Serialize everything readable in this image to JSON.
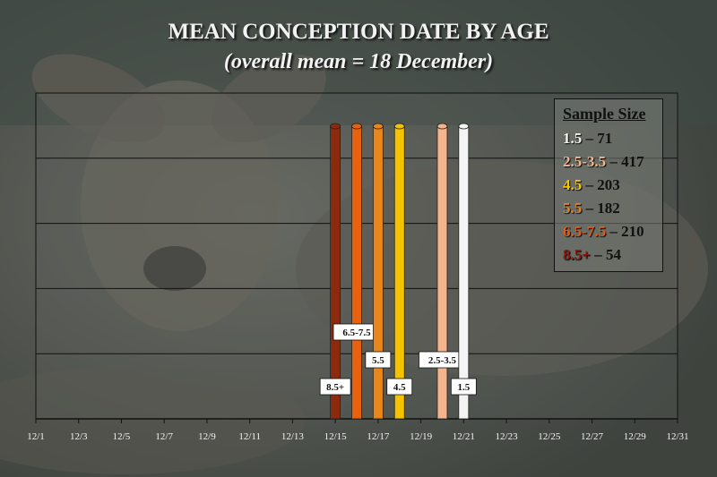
{
  "legend": {
    "title": "Sample Size",
    "entries": [
      {
        "label": "1.5",
        "count": "71",
        "color": "#f2f2f2"
      },
      {
        "label": "2.5-3.5",
        "count": "417",
        "color": "#f4b48c"
      },
      {
        "label": "4.5",
        "count": "203",
        "color": "#f5c400"
      },
      {
        "label": "5.5",
        "count": "182",
        "color": "#e6861c"
      },
      {
        "label": "6.5-7.5",
        "count": "210",
        "color": "#e85c0c"
      },
      {
        "label": "8.5+",
        "count": "54",
        "color": "#8c1a10"
      }
    ]
  },
  "chart_data": {
    "type": "bar",
    "title": "MEAN CONCEPTION DATE BY AGE",
    "subtitle": "(overall mean = 18 December)",
    "x_ticks": [
      "12/1",
      "12/3",
      "12/5",
      "12/7",
      "12/9",
      "12/11",
      "12/13",
      "12/15",
      "12/17",
      "12/19",
      "12/21",
      "12/23",
      "12/25",
      "12/27",
      "12/29",
      "12/31"
    ],
    "x_range": [
      "12/1",
      "12/31"
    ],
    "grid": "horizontal",
    "bars": [
      {
        "label": "8.5+",
        "date": "12/15",
        "color": "#8c2a0e"
      },
      {
        "label": "6.5-7.5",
        "date": "12/16",
        "color": "#e8620e"
      },
      {
        "label": "5.5",
        "date": "12/17",
        "color": "#e6861c"
      },
      {
        "label": "4.5",
        "date": "12/18",
        "color": "#f5c400"
      },
      {
        "label": "2.5-3.5",
        "date": "12/20",
        "color": "#f4b48c"
      },
      {
        "label": "1.5",
        "date": "12/21",
        "color": "#f4f4f4"
      }
    ],
    "legend_position": "top-right"
  }
}
